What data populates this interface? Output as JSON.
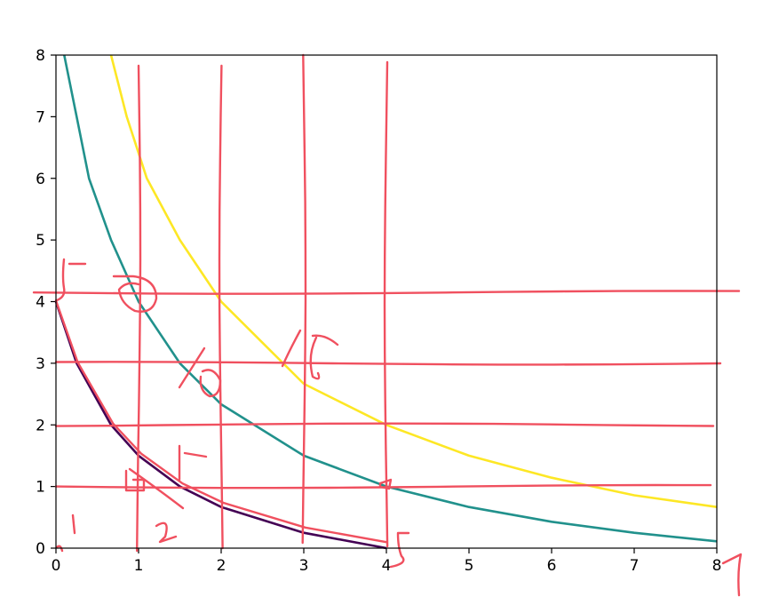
{
  "chart_data": {
    "type": "line",
    "title": "",
    "xlabel": "",
    "ylabel": "",
    "xlim": [
      0,
      8
    ],
    "ylim": [
      0,
      8
    ],
    "grid": false,
    "x_ticks": [
      "0",
      "1",
      "2",
      "3",
      "4",
      "5",
      "6",
      "7",
      "8"
    ],
    "y_ticks": [
      "0",
      "1",
      "2",
      "3",
      "4",
      "5",
      "6",
      "7",
      "8"
    ],
    "series": [
      {
        "color": "#440154",
        "points": [
          [
            0,
            4
          ],
          [
            0.25,
            3
          ],
          [
            0.6667,
            2
          ],
          [
            1,
            1.5
          ],
          [
            1.5,
            1
          ],
          [
            2,
            0.6667
          ],
          [
            3,
            0.25
          ],
          [
            4,
            0
          ]
        ]
      },
      {
        "color": "#21918c",
        "points": [
          [
            0.1,
            8
          ],
          [
            0.25,
            7
          ],
          [
            0.4,
            6
          ],
          [
            0.6667,
            5
          ],
          [
            1,
            4
          ],
          [
            1.5,
            3
          ],
          [
            2,
            2.3333
          ],
          [
            3,
            1.5
          ],
          [
            4,
            1
          ],
          [
            5,
            0.6667
          ],
          [
            6,
            0.4286
          ],
          [
            7,
            0.25
          ],
          [
            8,
            0.1111
          ]
        ]
      },
      {
        "color": "#fde725",
        "points": [
          [
            0.6667,
            8
          ],
          [
            0.8571,
            7
          ],
          [
            1.1,
            6
          ],
          [
            1.5,
            5
          ],
          [
            2,
            4
          ],
          [
            3,
            2.6667
          ],
          [
            4,
            2
          ],
          [
            5,
            1.5
          ],
          [
            6,
            1.1429
          ],
          [
            7,
            0.8571
          ],
          [
            8,
            0.6667
          ]
        ]
      }
    ],
    "annotations": {
      "color": "#f0505f",
      "vertical_lines_x": [
        1,
        2,
        3,
        4
      ],
      "horizontal_lines_y": [
        1,
        2,
        3,
        4.15
      ]
    }
  }
}
